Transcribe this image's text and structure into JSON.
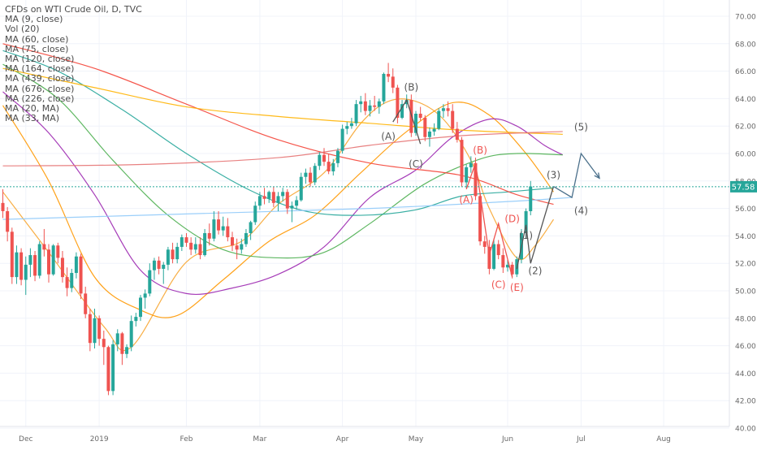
{
  "legend": {
    "title": "CFDs on WTI Crude Oil, D, TVC",
    "indicators": [
      "MA (9, close)",
      "Vol (20)",
      "MA (60, close)",
      "MA (75, close)",
      "MA (120, close)",
      "MA (164, close)",
      "MA (439, close)",
      "MA (676, close)",
      "MA (226, close)",
      "MA (20, MA)",
      "MA (33, MA)"
    ]
  },
  "chart_data": {
    "type": "candlestick",
    "title": "CFDs on WTI Crude Oil, D, TVC",
    "y_ticks": [
      "70.00",
      "68.00",
      "66.00",
      "64.00",
      "62.00",
      "60.00",
      "58.00",
      "56.00",
      "54.00",
      "52.00",
      "50.00",
      "48.00",
      "46.00",
      "44.00",
      "42.00",
      "40.00"
    ],
    "ylim": [
      40,
      71.5
    ],
    "x_ticks": [
      "Dec",
      "2019",
      "Feb",
      "Mar",
      "Apr",
      "May",
      "Jun",
      "Jul",
      "Aug"
    ],
    "last_price": "57.58",
    "colors": {
      "up": "#26a69a",
      "down": "#ef5350",
      "price_line": "#26a69a"
    },
    "candles": [
      [
        56.4,
        57.4,
        55.3,
        55.8
      ],
      [
        55.8,
        56.1,
        53.6,
        54.3
      ],
      [
        54.3,
        54.6,
        50.5,
        51.0
      ],
      [
        51.0,
        53.3,
        50.5,
        52.8
      ],
      [
        52.8,
        53.1,
        50.4,
        50.8
      ],
      [
        50.8,
        52.5,
        49.7,
        51.9
      ],
      [
        51.9,
        53.1,
        51.0,
        52.6
      ],
      [
        52.6,
        52.9,
        50.7,
        51.1
      ],
      [
        51.1,
        53.6,
        50.9,
        53.4
      ],
      [
        53.4,
        54.5,
        52.5,
        53.0
      ],
      [
        53.0,
        53.4,
        50.6,
        51.2
      ],
      [
        51.2,
        53.4,
        51.1,
        53.3
      ],
      [
        53.3,
        53.5,
        52.0,
        52.4
      ],
      [
        52.4,
        52.9,
        50.6,
        51.0
      ],
      [
        51.0,
        51.7,
        49.6,
        50.2
      ],
      [
        50.2,
        51.6,
        49.9,
        51.3
      ],
      [
        51.3,
        52.8,
        50.9,
        52.5
      ],
      [
        52.5,
        52.7,
        49.4,
        49.8
      ],
      [
        49.8,
        50.3,
        48.0,
        48.3
      ],
      [
        48.3,
        48.7,
        45.6,
        46.2
      ],
      [
        46.2,
        48.7,
        45.8,
        48.0
      ],
      [
        48.0,
        48.2,
        46.0,
        46.5
      ],
      [
        46.5,
        47.1,
        44.6,
        45.9
      ],
      [
        45.9,
        46.0,
        42.4,
        42.7
      ],
      [
        42.7,
        46.4,
        42.4,
        46.1
      ],
      [
        46.1,
        47.2,
        45.6,
        46.9
      ],
      [
        46.9,
        47.0,
        44.6,
        45.4
      ],
      [
        45.4,
        46.1,
        45.1,
        45.9
      ],
      [
        45.9,
        48.2,
        45.6,
        47.8
      ],
      [
        47.8,
        48.4,
        47.4,
        48.1
      ],
      [
        48.1,
        49.7,
        47.8,
        49.5
      ],
      [
        49.5,
        50.1,
        48.7,
        49.8
      ],
      [
        49.8,
        52.0,
        49.6,
        51.5
      ],
      [
        51.5,
        52.4,
        50.8,
        52.2
      ],
      [
        52.2,
        52.5,
        51.2,
        51.6
      ],
      [
        51.6,
        52.1,
        50.5,
        51.9
      ],
      [
        51.9,
        53.2,
        51.5,
        53.0
      ],
      [
        53.0,
        53.5,
        52.0,
        52.3
      ],
      [
        52.3,
        53.5,
        52.0,
        53.2
      ],
      [
        53.2,
        54.1,
        52.9,
        53.9
      ],
      [
        53.9,
        54.2,
        53.2,
        53.5
      ],
      [
        53.5,
        53.9,
        52.6,
        53.0
      ],
      [
        53.0,
        53.9,
        52.7,
        53.4
      ],
      [
        53.4,
        53.9,
        52.3,
        52.6
      ],
      [
        52.6,
        54.5,
        52.5,
        54.2
      ],
      [
        54.2,
        54.9,
        53.3,
        53.8
      ],
      [
        53.8,
        55.8,
        53.6,
        55.2
      ],
      [
        55.2,
        55.8,
        54.1,
        54.4
      ],
      [
        54.4,
        55.4,
        54.0,
        54.7
      ],
      [
        54.7,
        55.3,
        53.6,
        53.9
      ],
      [
        53.9,
        54.3,
        52.9,
        53.3
      ],
      [
        53.3,
        53.8,
        52.3,
        53.0
      ],
      [
        53.0,
        53.8,
        52.7,
        53.4
      ],
      [
        53.4,
        54.5,
        53.2,
        54.2
      ],
      [
        54.2,
        55.1,
        53.7,
        55.0
      ],
      [
        55.0,
        56.5,
        54.8,
        56.2
      ],
      [
        56.2,
        57.2,
        55.9,
        56.9
      ],
      [
        56.9,
        57.5,
        56.3,
        56.7
      ],
      [
        56.7,
        57.3,
        56.4,
        57.2
      ],
      [
        57.2,
        57.6,
        56.1,
        56.4
      ],
      [
        56.4,
        57.2,
        55.8,
        56.9
      ],
      [
        56.9,
        57.5,
        56.5,
        57.2
      ],
      [
        57.2,
        57.4,
        55.6,
        56.0
      ],
      [
        56.0,
        56.5,
        55.0,
        56.2
      ],
      [
        56.2,
        56.9,
        55.9,
        56.6
      ],
      [
        56.6,
        58.6,
        56.5,
        58.3
      ],
      [
        58.3,
        58.9,
        57.8,
        58.6
      ],
      [
        58.6,
        59.0,
        57.6,
        57.9
      ],
      [
        57.9,
        59.3,
        57.7,
        59.1
      ],
      [
        59.1,
        60.1,
        58.8,
        59.9
      ],
      [
        59.9,
        60.4,
        59.1,
        59.4
      ],
      [
        59.4,
        60.0,
        58.5,
        58.7
      ],
      [
        58.7,
        59.6,
        58.4,
        59.3
      ],
      [
        59.3,
        60.4,
        59.0,
        60.2
      ],
      [
        60.2,
        62.1,
        60.0,
        61.8
      ],
      [
        61.8,
        62.3,
        61.4,
        62.0
      ],
      [
        62.0,
        62.6,
        61.8,
        62.2
      ],
      [
        62.2,
        63.9,
        62.0,
        63.6
      ],
      [
        63.6,
        64.2,
        63.0,
        63.8
      ],
      [
        63.8,
        64.4,
        62.8,
        63.1
      ],
      [
        63.1,
        63.9,
        62.7,
        63.5
      ],
      [
        63.5,
        64.2,
        63.1,
        63.4
      ],
      [
        63.4,
        64.0,
        62.9,
        63.8
      ],
      [
        63.8,
        65.9,
        63.6,
        65.8
      ],
      [
        65.8,
        66.6,
        65.2,
        65.6
      ],
      [
        65.6,
        66.2,
        64.4,
        64.8
      ],
      [
        64.8,
        65.0,
        62.2,
        62.6
      ],
      [
        62.6,
        63.9,
        62.5,
        63.6
      ],
      [
        63.6,
        64.3,
        63.3,
        63.9
      ],
      [
        63.9,
        64.3,
        61.2,
        61.5
      ],
      [
        61.5,
        63.1,
        61.3,
        62.9
      ],
      [
        62.9,
        63.4,
        62.4,
        62.6
      ],
      [
        62.6,
        62.8,
        60.9,
        61.2
      ],
      [
        61.2,
        61.9,
        60.5,
        61.6
      ],
      [
        61.6,
        62.2,
        61.3,
        61.8
      ],
      [
        61.8,
        63.3,
        61.7,
        63.1
      ],
      [
        63.1,
        63.6,
        62.6,
        63.3
      ],
      [
        63.3,
        63.8,
        62.7,
        63.1
      ],
      [
        63.1,
        63.6,
        61.5,
        61.8
      ],
      [
        61.8,
        62.3,
        60.8,
        61.0
      ],
      [
        61.0,
        61.2,
        57.6,
        57.9
      ],
      [
        57.9,
        59.2,
        57.5,
        59.0
      ],
      [
        59.0,
        59.8,
        58.6,
        59.3
      ],
      [
        59.3,
        59.7,
        56.6,
        56.9
      ],
      [
        56.9,
        57.1,
        53.3,
        53.6
      ],
      [
        53.6,
        54.0,
        52.7,
        53.2
      ],
      [
        53.2,
        53.7,
        51.2,
        51.6
      ],
      [
        51.6,
        53.8,
        51.5,
        53.4
      ],
      [
        53.4,
        53.7,
        52.3,
        52.6
      ],
      [
        52.6,
        53.1,
        51.3,
        51.7
      ],
      [
        51.7,
        52.3,
        51.4,
        51.9
      ],
      [
        51.9,
        52.1,
        50.9,
        51.2
      ],
      [
        51.2,
        52.5,
        51.0,
        52.3
      ],
      [
        52.3,
        54.5,
        52.0,
        54.2
      ],
      [
        54.2,
        56.0,
        53.8,
        55.8
      ],
      [
        55.8,
        58.0,
        55.5,
        57.6
      ]
    ],
    "moving_averages": [
      {
        "name": "ma-fast",
        "color": "#f7a530",
        "points": [
          [
            0,
            57.2
          ],
          [
            10,
            52.8
          ],
          [
            22,
            47.4
          ],
          [
            28,
            45.9
          ],
          [
            40,
            52.1
          ],
          [
            52,
            53.6
          ],
          [
            60,
            56.3
          ],
          [
            70,
            58.6
          ],
          [
            78,
            62.2
          ],
          [
            84,
            63.8
          ],
          [
            90,
            63.8
          ],
          [
            96,
            62.5
          ],
          [
            102,
            59.5
          ],
          [
            106,
            56.0
          ],
          [
            112,
            52.4
          ],
          [
            116,
            53.3
          ],
          [
            120,
            55.2
          ]
        ]
      },
      {
        "name": "ma-orange",
        "color": "#ff9800",
        "points": [
          [
            0,
            63.5
          ],
          [
            10,
            58.0
          ],
          [
            20,
            51.0
          ],
          [
            30,
            48.6
          ],
          [
            38,
            48.2
          ],
          [
            48,
            50.8
          ],
          [
            58,
            53.6
          ],
          [
            68,
            55.5
          ],
          [
            78,
            58.6
          ],
          [
            88,
            61.6
          ],
          [
            98,
            63.7
          ],
          [
            106,
            62.8
          ],
          [
            114,
            60.0
          ],
          [
            120,
            57.2
          ]
        ]
      },
      {
        "name": "ma-purple",
        "color": "#9c27b0",
        "points": [
          [
            0,
            64.5
          ],
          [
            10,
            61.5
          ],
          [
            20,
            57.0
          ],
          [
            30,
            51.5
          ],
          [
            40,
            49.8
          ],
          [
            50,
            50.2
          ],
          [
            60,
            51.2
          ],
          [
            70,
            53.2
          ],
          [
            80,
            56.8
          ],
          [
            90,
            58.8
          ],
          [
            98,
            61.2
          ],
          [
            106,
            62.5
          ],
          [
            112,
            62.0
          ],
          [
            118,
            60.6
          ],
          [
            122,
            59.9
          ]
        ]
      },
      {
        "name": "ma-green",
        "color": "#4caf50",
        "points": [
          [
            0,
            66.5
          ],
          [
            12,
            64.0
          ],
          [
            24,
            59.5
          ],
          [
            36,
            55.5
          ],
          [
            48,
            53.0
          ],
          [
            60,
            52.4
          ],
          [
            70,
            52.8
          ],
          [
            80,
            54.9
          ],
          [
            92,
            57.8
          ],
          [
            104,
            59.6
          ],
          [
            112,
            60.0
          ],
          [
            122,
            59.9
          ]
        ]
      },
      {
        "name": "ma-teal",
        "color": "#26a69a",
        "points": [
          [
            0,
            67.5
          ],
          [
            12,
            66.0
          ],
          [
            26,
            63.2
          ],
          [
            40,
            60.0
          ],
          [
            54,
            57.3
          ],
          [
            66,
            55.8
          ],
          [
            78,
            55.5
          ],
          [
            90,
            55.9
          ],
          [
            100,
            56.9
          ],
          [
            110,
            57.2
          ],
          [
            120,
            57.5
          ]
        ]
      },
      {
        "name": "ma-red",
        "color": "#f44336",
        "points": [
          [
            0,
            68.0
          ],
          [
            20,
            66.2
          ],
          [
            40,
            63.6
          ],
          [
            60,
            61.0
          ],
          [
            80,
            59.3
          ],
          [
            100,
            58.4
          ],
          [
            112,
            57.0
          ],
          [
            120,
            56.3
          ]
        ]
      },
      {
        "name": "ma-gold",
        "color": "#ffb300",
        "points": [
          [
            0,
            66.2
          ],
          [
            20,
            64.8
          ],
          [
            40,
            63.4
          ],
          [
            60,
            62.7
          ],
          [
            80,
            62.2
          ],
          [
            100,
            61.7
          ],
          [
            122,
            61.4
          ]
        ]
      },
      {
        "name": "ma-pink",
        "color": "#e57373",
        "points": [
          [
            0,
            59.1
          ],
          [
            30,
            59.2
          ],
          [
            60,
            59.7
          ],
          [
            80,
            60.6
          ],
          [
            100,
            61.3
          ],
          [
            122,
            61.6
          ]
        ]
      },
      {
        "name": "ma-blue",
        "color": "#90caf9",
        "points": [
          [
            0,
            55.2
          ],
          [
            40,
            55.6
          ],
          [
            80,
            56.0
          ],
          [
            110,
            56.5
          ],
          [
            124,
            56.8
          ]
        ]
      }
    ],
    "wave_labels": [
      {
        "text": "(B)",
        "color": "#555555"
      },
      {
        "text": "(A)",
        "color": "#555555"
      },
      {
        "text": "(C)",
        "color": "#555555"
      },
      {
        "text": "(B)",
        "color": "#ef5350"
      },
      {
        "text": "(A)",
        "color": "#ef5350"
      },
      {
        "text": "(D)",
        "color": "#ef5350"
      },
      {
        "text": "(C)",
        "color": "#ef5350"
      },
      {
        "text": "(E)",
        "color": "#ef5350"
      },
      {
        "text": "(1)",
        "color": "#555555"
      },
      {
        "text": "(2)",
        "color": "#555555"
      },
      {
        "text": "(3)",
        "color": "#555555"
      },
      {
        "text": "(4)",
        "color": "#555555"
      },
      {
        "text": "(5)",
        "color": "#555555"
      }
    ],
    "wave_lines": [
      {
        "color": "#555555",
        "points": [
          [
            85,
            62.3
          ],
          [
            88,
            63.9
          ],
          [
            91,
            60.7
          ]
        ]
      },
      {
        "color": "#ef5350",
        "points": [
          [
            101,
            57.4
          ],
          [
            103,
            59.3
          ],
          [
            106,
            52.6
          ],
          [
            108,
            54.9
          ],
          [
            111,
            51.0
          ]
        ]
      },
      {
        "color": "#555555",
        "points": [
          [
            112,
            51.6
          ],
          [
            114,
            54.8
          ],
          [
            115,
            52.0
          ],
          [
            120,
            57.6
          ]
        ]
      },
      {
        "color": "#4a6f8a",
        "points": [
          [
            120,
            57.6
          ],
          [
            124,
            56.8
          ],
          [
            126,
            60.0
          ],
          [
            130,
            58.2
          ]
        ]
      }
    ]
  }
}
